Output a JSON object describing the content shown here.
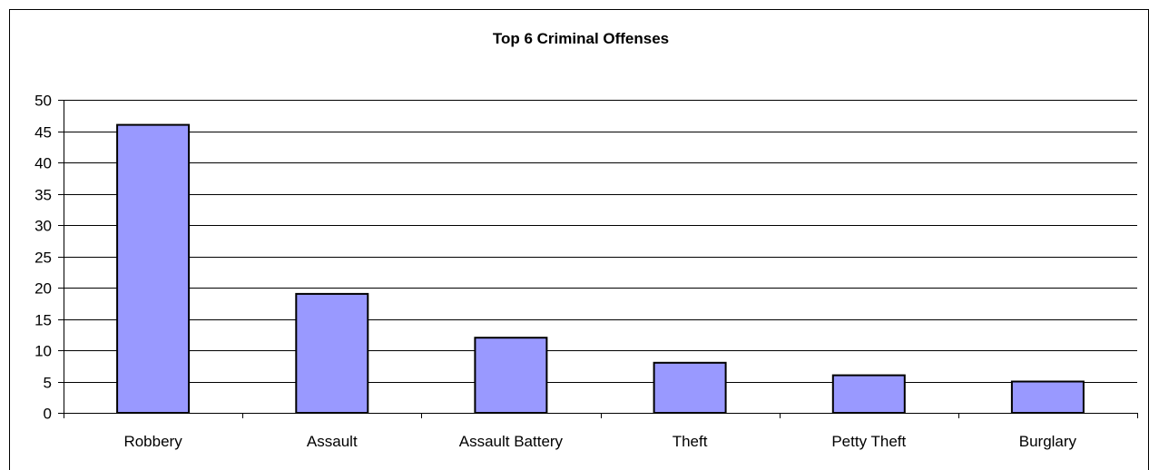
{
  "chart_data": {
    "type": "bar",
    "title": "Top 6 Criminal Offenses",
    "xlabel": "",
    "ylabel": "",
    "categories": [
      "Robbery",
      "Assault",
      "Assault Battery",
      "Theft",
      "Petty Theft",
      "Burglary"
    ],
    "values": [
      46,
      19,
      12,
      8,
      6,
      5
    ],
    "ylim": [
      0,
      50
    ],
    "yticks": [
      0,
      5,
      10,
      15,
      20,
      25,
      30,
      35,
      40,
      45,
      50
    ],
    "grid": true,
    "legend": "none",
    "colors": {
      "bar_fill": "#9999ff",
      "bar_stroke": "#000000",
      "grid": "#000000",
      "background": "#ffffff"
    }
  }
}
